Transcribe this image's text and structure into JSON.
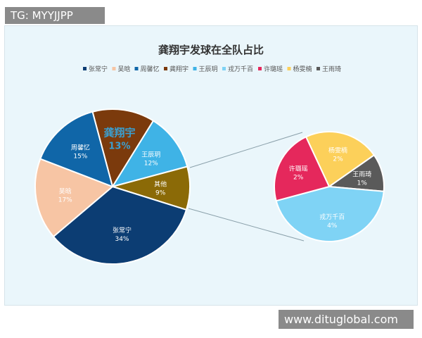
{
  "watermarks": {
    "top_left": "TG: MYYJJPP",
    "bottom_right": "www.dituglobal.com"
  },
  "chart_data": {
    "type": "pie-of-pie",
    "title": "龚翔宇发球在全队占比",
    "legend": {
      "placement": "top",
      "entries": [
        "张常宁",
        "吴晗",
        "周馨忆",
        "龚翔宇",
        "王辰玥",
        "戎万千百",
        "许璐瑶",
        "杨雯楠",
        "王雨琦"
      ]
    },
    "main_pie": [
      {
        "name": "龚翔宇",
        "value": 13,
        "label": "13%",
        "color": "#7b3a0c",
        "highlight": true
      },
      {
        "name": "王辰玥",
        "value": 12,
        "label": "12%",
        "color": "#3fb3e6"
      },
      {
        "name": "其他",
        "value": 9,
        "label": "9%",
        "color": "#8b6a07"
      },
      {
        "name": "张常宁",
        "value": 34,
        "label": "34%",
        "color": "#0c3d73"
      },
      {
        "name": "吴晗",
        "value": 17,
        "label": "17%",
        "color": "#f7c5a4"
      },
      {
        "name": "周馨忆",
        "value": 15,
        "label": "15%",
        "color": "#1066a8"
      }
    ],
    "secondary_pie": [
      {
        "name": "杨雯楠",
        "value": 2,
        "label": "2%",
        "color": "#fcd05a"
      },
      {
        "name": "王雨琦",
        "value": 1,
        "label": "1%",
        "color": "#5a5a5a"
      },
      {
        "name": "戎万千百",
        "value": 4,
        "label": "4%",
        "color": "#7fd3f5"
      },
      {
        "name": "许璐瑶",
        "value": 2,
        "label": "2%",
        "color": "#e5285c"
      }
    ],
    "legend_colors": [
      "#0c3d73",
      "#f7c5a4",
      "#1066a8",
      "#7b3a0c",
      "#3fb3e6",
      "#7fd3f5",
      "#e5285c",
      "#fcd05a",
      "#5a5a5a"
    ]
  }
}
